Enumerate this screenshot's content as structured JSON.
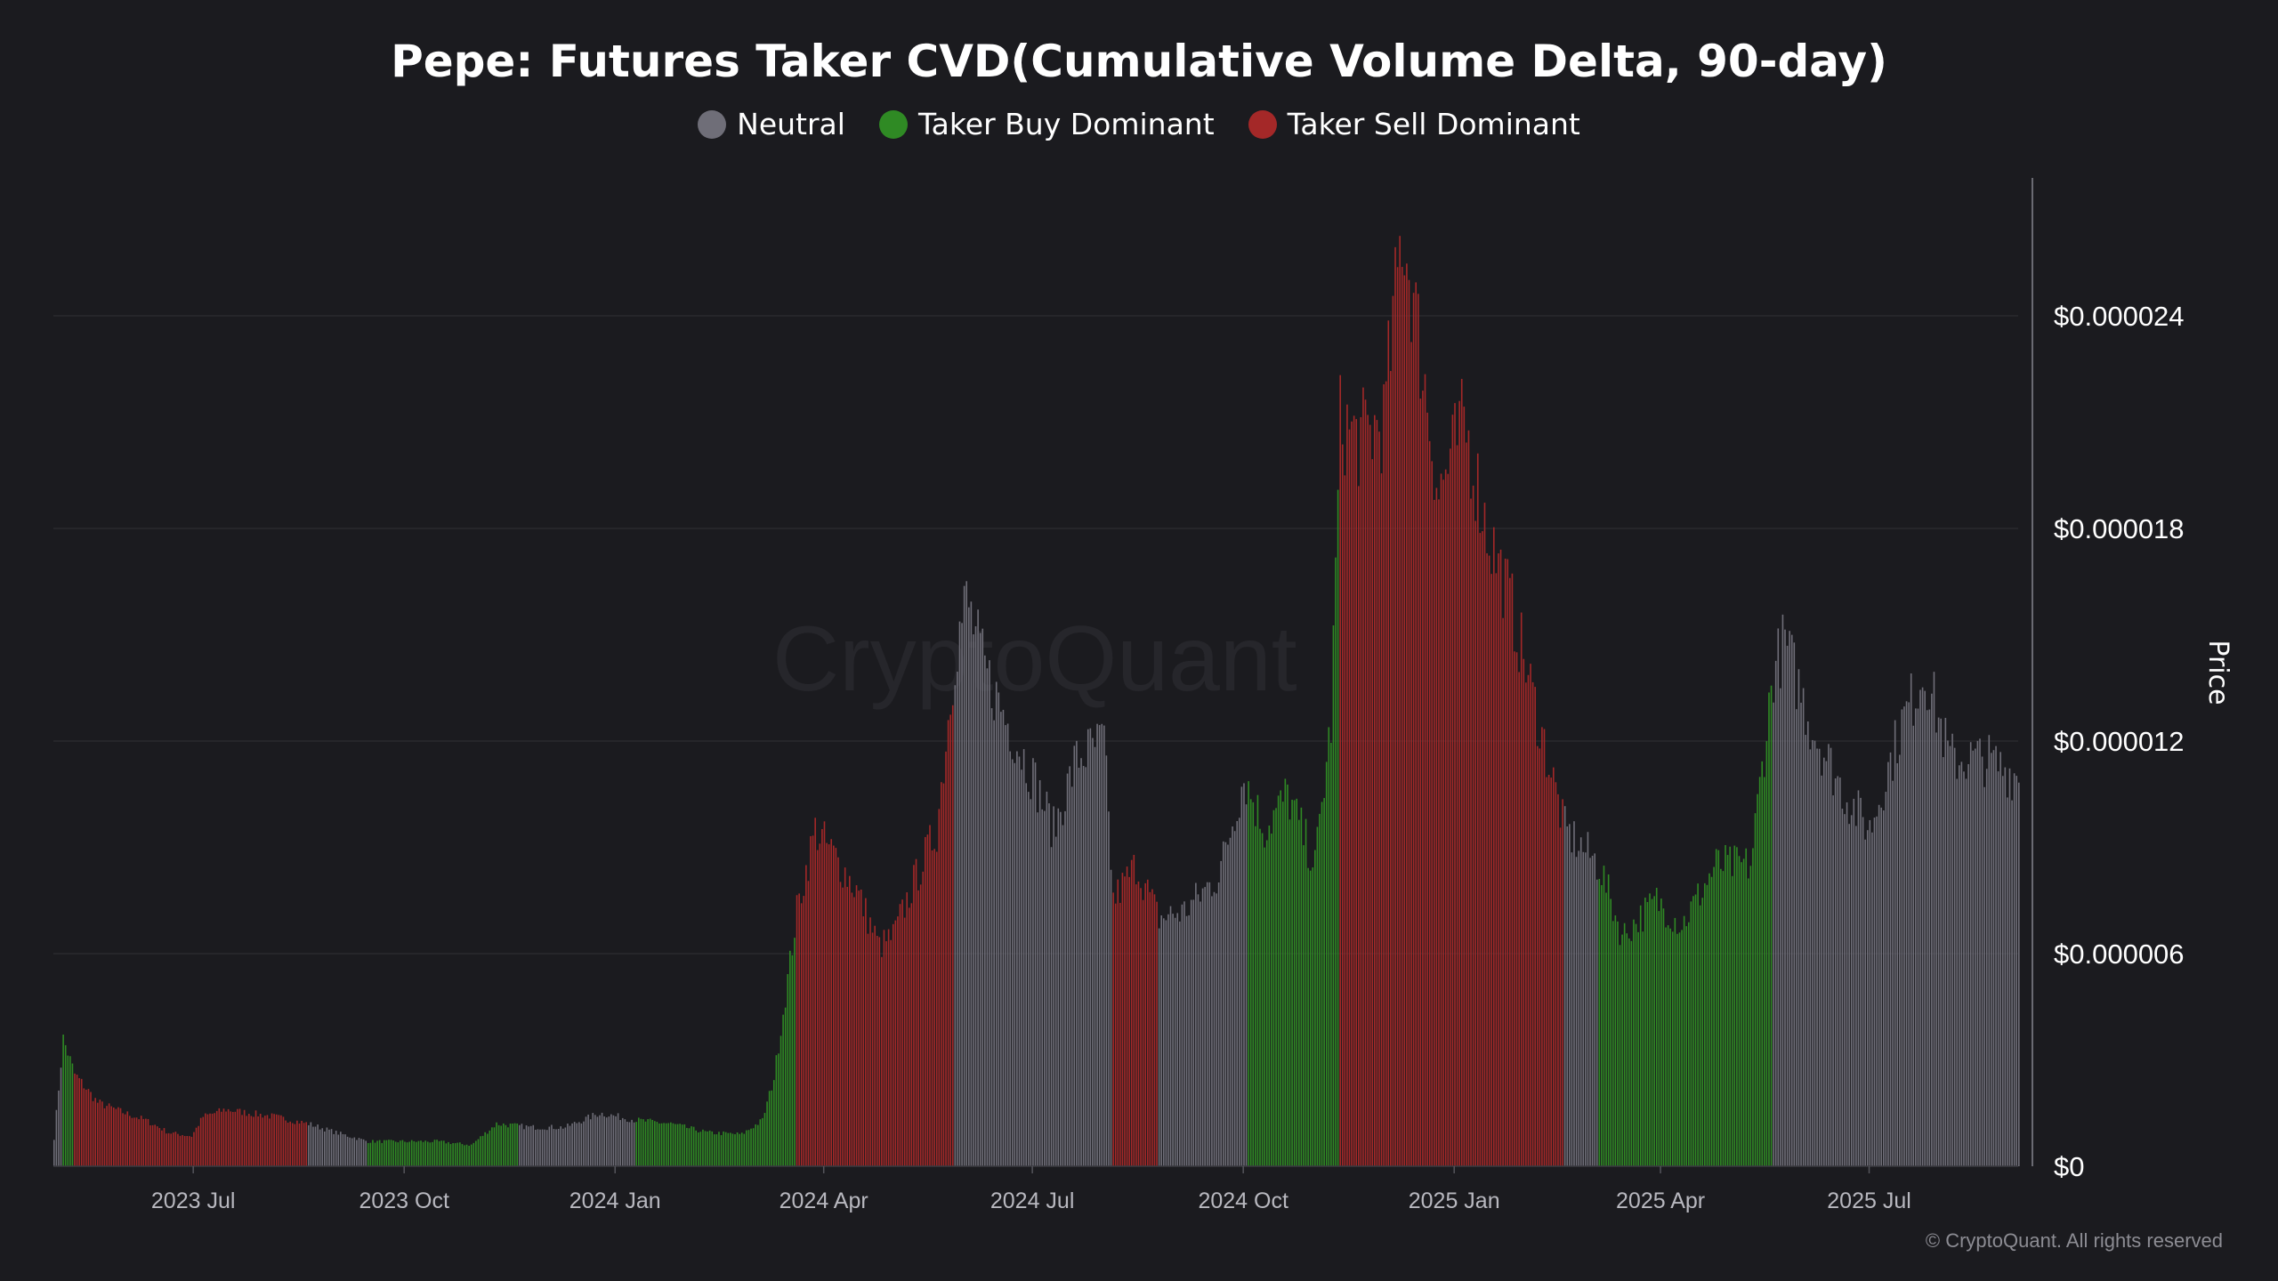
{
  "chart_data": {
    "type": "bar",
    "title": "Pepe: Futures Taker CVD(Cumulative Volume Delta, 90-day)",
    "ylabel": "Price",
    "ylim": [
      0,
      2.8e-05
    ],
    "y_ticks": [
      {
        "value": 0,
        "label": "$0"
      },
      {
        "value": 6e-06,
        "label": "$0.000006"
      },
      {
        "value": 1.2e-05,
        "label": "$0.000012"
      },
      {
        "value": 1.8e-05,
        "label": "$0.000018"
      },
      {
        "value": 2.4e-05,
        "label": "$0.000024"
      }
    ],
    "x_range": [
      "2023-05-01",
      "2025-09-04"
    ],
    "x_ticks": [
      {
        "date": "2023-07-01",
        "label": "2023 Jul"
      },
      {
        "date": "2023-10-01",
        "label": "2023 Oct"
      },
      {
        "date": "2024-01-01",
        "label": "2024 Jan"
      },
      {
        "date": "2024-04-01",
        "label": "2024 Apr"
      },
      {
        "date": "2024-07-01",
        "label": "2024 Jul"
      },
      {
        "date": "2024-10-01",
        "label": "2024 Oct"
      },
      {
        "date": "2025-01-01",
        "label": "2025 Jan"
      },
      {
        "date": "2025-04-01",
        "label": "2025 Apr"
      },
      {
        "date": "2025-07-01",
        "label": "2025 Jul"
      }
    ],
    "grid": true,
    "legend_position": "top-center",
    "legend": [
      {
        "name": "Neutral",
        "color": "#6f6e78"
      },
      {
        "name": "Taker Buy Dominant",
        "color": "#2f8a24"
      },
      {
        "name": "Taker Sell Dominant",
        "color": "#a42828"
      }
    ],
    "series_note_regimes": [
      {
        "start": "2023-05-01",
        "end": "2023-05-05",
        "regime": "Neutral"
      },
      {
        "start": "2023-05-05",
        "end": "2023-05-10",
        "regime": "Taker Buy Dominant"
      },
      {
        "start": "2023-05-10",
        "end": "2023-08-20",
        "regime": "Taker Sell Dominant"
      },
      {
        "start": "2023-08-20",
        "end": "2023-09-15",
        "regime": "Neutral"
      },
      {
        "start": "2023-09-15",
        "end": "2023-11-20",
        "regime": "Taker Buy Dominant"
      },
      {
        "start": "2023-11-20",
        "end": "2024-01-10",
        "regime": "Neutral"
      },
      {
        "start": "2024-01-10",
        "end": "2024-03-05",
        "regime": "Taker Buy Dominant"
      },
      {
        "start": "2024-03-05",
        "end": "2024-03-20",
        "regime": "Taker Buy Dominant"
      },
      {
        "start": "2024-03-20",
        "end": "2024-05-28",
        "regime": "Taker Sell Dominant"
      },
      {
        "start": "2024-05-28",
        "end": "2024-08-05",
        "regime": "Neutral"
      },
      {
        "start": "2024-08-05",
        "end": "2024-08-25",
        "regime": "Taker Sell Dominant"
      },
      {
        "start": "2024-08-25",
        "end": "2024-10-03",
        "regime": "Neutral"
      },
      {
        "start": "2024-10-03",
        "end": "2024-11-12",
        "regime": "Taker Buy Dominant"
      },
      {
        "start": "2024-11-12",
        "end": "2025-02-18",
        "regime": "Taker Sell Dominant"
      },
      {
        "start": "2025-02-18",
        "end": "2025-03-05",
        "regime": "Neutral"
      },
      {
        "start": "2025-03-05",
        "end": "2025-05-20",
        "regime": "Taker Buy Dominant"
      },
      {
        "start": "2025-05-20",
        "end": "2025-09-04",
        "regime": "Neutral"
      }
    ],
    "series": [
      {
        "name": "Price",
        "points": [
          [
            "2023-05-01",
            8e-07
          ],
          [
            "2023-05-05",
            3.6e-06
          ],
          [
            "2023-05-10",
            2.6e-06
          ],
          [
            "2023-05-20",
            1.8e-06
          ],
          [
            "2023-06-01",
            1.5e-06
          ],
          [
            "2023-06-10",
            1.3e-06
          ],
          [
            "2023-06-20",
            9.5e-07
          ],
          [
            "2023-06-30",
            8.5e-07
          ],
          [
            "2023-07-05",
            1.4e-06
          ],
          [
            "2023-07-15",
            1.6e-06
          ],
          [
            "2023-07-25",
            1.5e-06
          ],
          [
            "2023-08-05",
            1.4e-06
          ],
          [
            "2023-08-20",
            1.2e-06
          ],
          [
            "2023-09-01",
            9.5e-07
          ],
          [
            "2023-09-15",
            7e-07
          ],
          [
            "2023-10-01",
            7e-07
          ],
          [
            "2023-10-15",
            7e-07
          ],
          [
            "2023-10-30",
            6e-07
          ],
          [
            "2023-11-10",
            1.2e-06
          ],
          [
            "2023-11-25",
            1.1e-06
          ],
          [
            "2023-12-10",
            1.1e-06
          ],
          [
            "2023-12-25",
            1.5e-06
          ],
          [
            "2024-01-10",
            1.3e-06
          ],
          [
            "2024-01-25",
            1.2e-06
          ],
          [
            "2024-02-10",
            9.5e-07
          ],
          [
            "2024-02-25",
            9e-07
          ],
          [
            "2024-03-05",
            1.3e-06
          ],
          [
            "2024-03-10",
            2.5e-06
          ],
          [
            "2024-03-15",
            4.8e-06
          ],
          [
            "2024-03-20",
            7.2e-06
          ],
          [
            "2024-03-28",
            9.5e-06
          ],
          [
            "2024-04-05",
            8.8e-06
          ],
          [
            "2024-04-15",
            7.8e-06
          ],
          [
            "2024-04-25",
            6.2e-06
          ],
          [
            "2024-05-01",
            6.5e-06
          ],
          [
            "2024-05-10",
            8e-06
          ],
          [
            "2024-05-20",
            9.5e-06
          ],
          [
            "2024-05-28",
            1.45e-05
          ],
          [
            "2024-06-02",
            1.6e-05
          ],
          [
            "2024-06-10",
            1.4e-05
          ],
          [
            "2024-06-20",
            1.25e-05
          ],
          [
            "2024-07-01",
            1.1e-05
          ],
          [
            "2024-07-10",
            9.5e-06
          ],
          [
            "2024-07-20",
            1.15e-05
          ],
          [
            "2024-08-01",
            1.2e-05
          ],
          [
            "2024-08-05",
            7.5e-06
          ],
          [
            "2024-08-15",
            8.5e-06
          ],
          [
            "2024-08-25",
            7e-06
          ],
          [
            "2024-09-05",
            7.2e-06
          ],
          [
            "2024-09-20",
            8.2e-06
          ],
          [
            "2024-10-01",
            1.1e-05
          ],
          [
            "2024-10-10",
            9.5e-06
          ],
          [
            "2024-10-20",
            1.05e-05
          ],
          [
            "2024-11-01",
            8.5e-06
          ],
          [
            "2024-11-08",
            1.25e-05
          ],
          [
            "2024-11-12",
            2.1e-05
          ],
          [
            "2024-11-20",
            2.05e-05
          ],
          [
            "2024-12-01",
            2.1e-05
          ],
          [
            "2024-12-09",
            2.65e-05
          ],
          [
            "2024-12-15",
            2.4e-05
          ],
          [
            "2024-12-25",
            1.9e-05
          ],
          [
            "2025-01-05",
            2.1e-05
          ],
          [
            "2025-01-15",
            1.8e-05
          ],
          [
            "2025-01-25",
            1.6e-05
          ],
          [
            "2025-02-05",
            1.3e-05
          ],
          [
            "2025-02-18",
            9.5e-06
          ],
          [
            "2025-03-05",
            8.5e-06
          ],
          [
            "2025-03-15",
            6.5e-06
          ],
          [
            "2025-03-30",
            7.5e-06
          ],
          [
            "2025-04-10",
            6.8e-06
          ],
          [
            "2025-04-25",
            8.5e-06
          ],
          [
            "2025-05-10",
            8.5e-06
          ],
          [
            "2025-05-20",
            1.4e-05
          ],
          [
            "2025-05-25",
            1.48e-05
          ],
          [
            "2025-06-05",
            1.25e-05
          ],
          [
            "2025-06-20",
            1.05e-05
          ],
          [
            "2025-07-01",
            9.5e-06
          ],
          [
            "2025-07-15",
            1.25e-05
          ],
          [
            "2025-07-25",
            1.4e-05
          ],
          [
            "2025-08-05",
            1.15e-05
          ],
          [
            "2025-08-20",
            1.15e-05
          ],
          [
            "2025-09-04",
            1.1e-05
          ]
        ]
      }
    ]
  },
  "watermark": "CryptoQuant",
  "copyright": "© CryptoQuant. All rights reserved",
  "colors": {
    "background": "#1b1b1f",
    "grid": "#2c2c32",
    "axis_text": "#b8b8bf"
  }
}
